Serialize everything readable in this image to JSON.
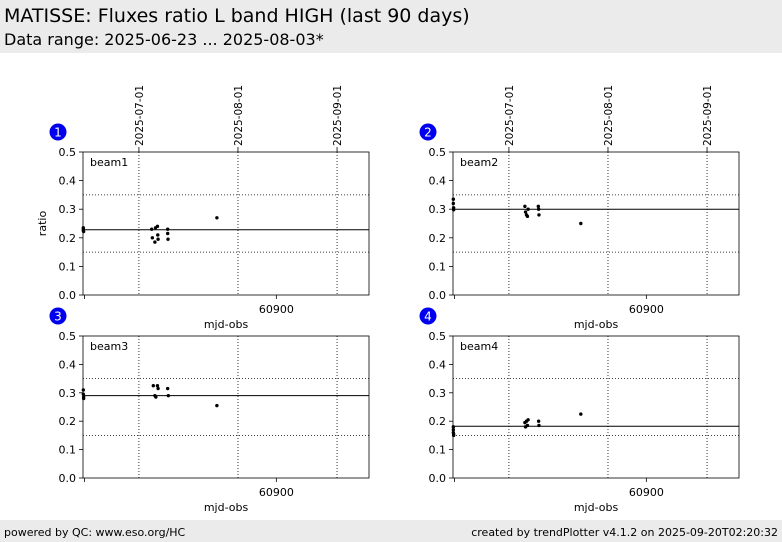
{
  "header": {
    "title": "MATISSE: Fluxes ratio L band HIGH (last 90 days)",
    "subtitle": "Data range: 2025-06-23 ... 2025-08-03*"
  },
  "footer": {
    "left": "powered by QC: www.eso.org/HC",
    "right": "created by trendPlotter v4.1.2 on 2025-09-20T02:20:32"
  },
  "colors": {
    "badge": "#0000ee",
    "background": "#ffffff",
    "band": "#ebebeb"
  },
  "chart_data": [
    {
      "type": "scatter",
      "badge": "1",
      "label": "beam1",
      "xlabel": "mjd-obs",
      "ylabel": "ratio",
      "xlim": [
        60839.5,
        60929
      ],
      "ylim": [
        0,
        0.5
      ],
      "xticks": [
        60840,
        60900
      ],
      "xtick_labels": [
        "",
        "60900"
      ],
      "yticks": [
        0,
        0.1,
        0.2,
        0.3,
        0.4,
        0.5
      ],
      "ytick_labels": [
        "0.0",
        "0.1",
        "0.2",
        "0.3",
        "0.4",
        "0.5"
      ],
      "date_ticks": [
        {
          "mjd": 60857,
          "label": "2025-07-01"
        },
        {
          "mjd": 60888,
          "label": "2025-08-01"
        },
        {
          "mjd": 60919,
          "label": "2025-09-01"
        }
      ],
      "hlines": [
        {
          "y": 0.228,
          "style": "solid"
        },
        {
          "y": 0.35,
          "style": "dotted"
        },
        {
          "y": 0.15,
          "style": "dotted"
        }
      ],
      "points": {
        "x": [
          60839.6,
          60839.6,
          60839.6,
          60839.7,
          60861.0,
          60861.2,
          60862.0,
          60862.2,
          60862.8,
          60862.9,
          60863.0,
          60866.0,
          60866.0,
          60866.1,
          60881.4
        ],
        "y": [
          0.235,
          0.23,
          0.225,
          0.222,
          0.23,
          0.2,
          0.185,
          0.235,
          0.24,
          0.21,
          0.195,
          0.23,
          0.215,
          0.195,
          0.27
        ]
      }
    },
    {
      "type": "scatter",
      "badge": "2",
      "label": "beam2",
      "xlabel": "mjd-obs",
      "ylabel": "",
      "xlim": [
        60839.5,
        60929
      ],
      "ylim": [
        0,
        0.5
      ],
      "xticks": [
        60840,
        60900
      ],
      "xtick_labels": [
        "",
        "60900"
      ],
      "yticks": [
        0,
        0.1,
        0.2,
        0.3,
        0.4,
        0.5
      ],
      "ytick_labels": [
        "0.0",
        "0.1",
        "0.2",
        "0.3",
        "0.4",
        "0.5"
      ],
      "date_ticks": [
        {
          "mjd": 60857,
          "label": "2025-07-01"
        },
        {
          "mjd": 60888,
          "label": "2025-08-01"
        },
        {
          "mjd": 60919,
          "label": "2025-09-01"
        }
      ],
      "hlines": [
        {
          "y": 0.3,
          "style": "solid"
        },
        {
          "y": 0.35,
          "style": "dotted"
        },
        {
          "y": 0.15,
          "style": "dotted"
        }
      ],
      "points": {
        "x": [
          60839.6,
          60839.6,
          60839.7,
          60839.7,
          60862.0,
          60862.2,
          60862.5,
          60862.8,
          60863.0,
          60866.2,
          60866.3,
          60866.4,
          60879.5
        ],
        "y": [
          0.335,
          0.32,
          0.305,
          0.298,
          0.31,
          0.29,
          0.28,
          0.275,
          0.3,
          0.31,
          0.3,
          0.28,
          0.25
        ]
      }
    },
    {
      "type": "scatter",
      "badge": "3",
      "label": "beam3",
      "xlabel": "mjd-obs",
      "ylabel": "",
      "xlim": [
        60839.5,
        60929
      ],
      "ylim": [
        0,
        0.5
      ],
      "xticks": [
        60840,
        60900
      ],
      "xtick_labels": [
        "",
        "60900"
      ],
      "yticks": [
        0,
        0.1,
        0.2,
        0.3,
        0.4,
        0.5
      ],
      "ytick_labels": [
        "0.0",
        "0.1",
        "0.2",
        "0.3",
        "0.4",
        "0.5"
      ],
      "date_ticks": [],
      "hlines": [
        {
          "y": 0.29,
          "style": "solid"
        },
        {
          "y": 0.35,
          "style": "dotted"
        },
        {
          "y": 0.15,
          "style": "dotted"
        }
      ],
      "points": {
        "x": [
          60839.6,
          60839.6,
          60839.7,
          60839.7,
          60861.5,
          60862.0,
          60862.3,
          60862.8,
          60863.0,
          60866.0,
          60866.2,
          60881.4
        ],
        "y": [
          0.31,
          0.295,
          0.285,
          0.28,
          0.325,
          0.29,
          0.285,
          0.325,
          0.315,
          0.315,
          0.29,
          0.255
        ]
      }
    },
    {
      "type": "scatter",
      "badge": "4",
      "label": "beam4",
      "xlabel": "mjd-obs",
      "ylabel": "",
      "xlim": [
        60839.5,
        60929
      ],
      "ylim": [
        0,
        0.5
      ],
      "xticks": [
        60840,
        60900
      ],
      "xtick_labels": [
        "",
        "60900"
      ],
      "yticks": [
        0,
        0.1,
        0.2,
        0.3,
        0.4,
        0.5
      ],
      "ytick_labels": [
        "0.0",
        "0.1",
        "0.2",
        "0.3",
        "0.4",
        "0.5"
      ],
      "date_ticks": [],
      "hlines": [
        {
          "y": 0.182,
          "style": "solid"
        },
        {
          "y": 0.35,
          "style": "dotted"
        },
        {
          "y": 0.15,
          "style": "dotted"
        }
      ],
      "points": {
        "x": [
          60839.6,
          60839.6,
          60839.6,
          60839.7,
          60839.7,
          60862.0,
          60862.2,
          60862.5,
          60862.8,
          60863.0,
          60866.3,
          60866.4,
          60879.5
        ],
        "y": [
          0.18,
          0.17,
          0.16,
          0.155,
          0.15,
          0.195,
          0.18,
          0.2,
          0.185,
          0.205,
          0.2,
          0.185,
          0.225
        ]
      }
    }
  ]
}
